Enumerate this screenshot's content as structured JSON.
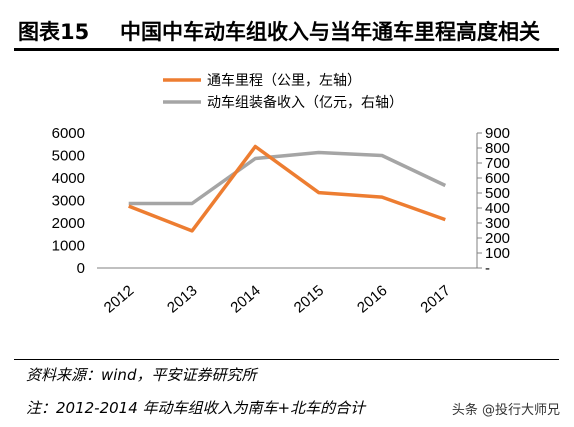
{
  "header": {
    "fig_num": "图表15",
    "title": "中国中车动车组收入与当年通车里程高度相关"
  },
  "footer": {
    "source": "资料来源：wind，平安证券研究所",
    "note": "注：2012-2014 年动车组收入为南车+北车的合计",
    "watermark": "头条 @投行大师兄"
  },
  "chart_data": {
    "type": "line",
    "title": "",
    "categories": [
      "2012",
      "2013",
      "2014",
      "2015",
      "2016",
      "2017"
    ],
    "series": [
      {
        "name": "通车里程（公里，左轴）",
        "axis": "left",
        "color": "#ED7D31",
        "values": [
          2750,
          1650,
          5400,
          3350,
          3150,
          2150
        ]
      },
      {
        "name": "动车组装备收入（亿元，右轴）",
        "axis": "right",
        "color": "#A5A5A5",
        "values": [
          430,
          430,
          730,
          770,
          750,
          550
        ]
      }
    ],
    "left_axis": {
      "ylim": [
        0,
        6000
      ],
      "ticks": [
        "0",
        "1000",
        "2000",
        "3000",
        "4000",
        "5000",
        "6000"
      ]
    },
    "right_axis": {
      "ylim": [
        0,
        900
      ],
      "ticks": [
        "-",
        "100",
        "200",
        "300",
        "400",
        "500",
        "600",
        "700",
        "800",
        "900"
      ]
    },
    "legend_position": "top",
    "grid": false
  }
}
